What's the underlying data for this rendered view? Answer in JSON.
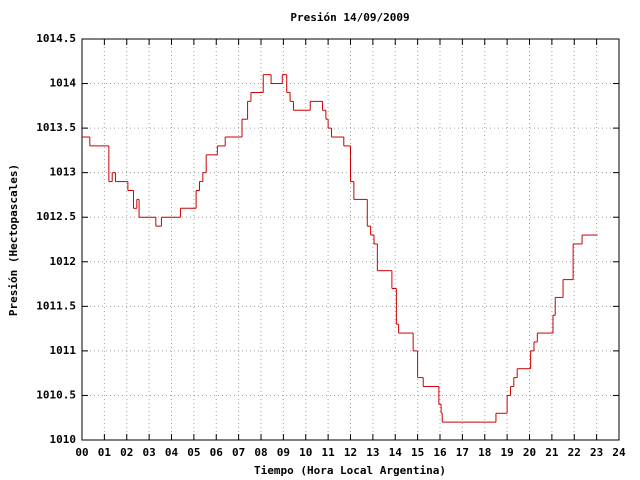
{
  "chart_data": {
    "type": "line",
    "drawstyle": "steps-post",
    "title": "Presión 14/09/2009",
    "x_label": "Tiempo (Hora Local Argentina)",
    "y_label": "Presión (Hectopascales)",
    "xlim": [
      0,
      24
    ],
    "xticks": [
      {
        "value": 0,
        "label": "00"
      },
      {
        "value": 1,
        "label": "01"
      },
      {
        "value": 2,
        "label": "02"
      },
      {
        "value": 3,
        "label": "03"
      },
      {
        "value": 4,
        "label": "04"
      },
      {
        "value": 5,
        "label": "05"
      },
      {
        "value": 6,
        "label": "06"
      },
      {
        "value": 7,
        "label": "07"
      },
      {
        "value": 8,
        "label": "08"
      },
      {
        "value": 9,
        "label": "09"
      },
      {
        "value": 10,
        "label": "10"
      },
      {
        "value": 11,
        "label": "11"
      },
      {
        "value": 12,
        "label": "12"
      },
      {
        "value": 13,
        "label": "13"
      },
      {
        "value": 14,
        "label": "14"
      },
      {
        "value": 15,
        "label": "15"
      },
      {
        "value": 16,
        "label": "16"
      },
      {
        "value": 17,
        "label": "17"
      },
      {
        "value": 18,
        "label": "18"
      },
      {
        "value": 19,
        "label": "19"
      },
      {
        "value": 20,
        "label": "20"
      },
      {
        "value": 21,
        "label": "21"
      },
      {
        "value": 22,
        "label": "22"
      },
      {
        "value": 23,
        "label": "23"
      },
      {
        "value": 24,
        "label": "24"
      }
    ],
    "ylim": [
      1010,
      1014.5
    ],
    "yticks": [
      1010,
      1010.5,
      1011,
      1011.5,
      1012,
      1012.5,
      1013,
      1013.5,
      1014,
      1014.5
    ],
    "grid": true,
    "color": "#cc0000",
    "x": [
      0,
      0.35,
      1.2,
      1.35,
      1.5,
      2.05,
      2.3,
      2.45,
      2.55,
      3.3,
      3.55,
      4.4,
      5.1,
      5.25,
      5.4,
      5.55,
      6.05,
      6.4,
      7.15,
      7.4,
      7.55,
      8.1,
      8.45,
      8.95,
      9.15,
      9.3,
      9.45,
      10.2,
      10.75,
      10.9,
      11.0,
      11.15,
      11.7,
      12.0,
      12.15,
      12.75,
      12.9,
      13.05,
      13.2,
      13.85,
      14.05,
      14.15,
      14.8,
      15.0,
      15.25,
      15.95,
      16.05,
      16.1,
      18.5,
      19.0,
      19.15,
      19.3,
      19.45,
      20.05,
      20.2,
      20.35,
      21.05,
      21.15,
      21.5,
      21.95,
      22.35,
      23.0
    ],
    "values": [
      1013.4,
      1013.3,
      1012.9,
      1013.0,
      1012.9,
      1012.8,
      1012.6,
      1012.7,
      1012.5,
      1012.4,
      1012.5,
      1012.6,
      1012.8,
      1012.9,
      1013.0,
      1013.2,
      1013.3,
      1013.4,
      1013.6,
      1013.8,
      1013.9,
      1014.1,
      1014.0,
      1014.1,
      1013.9,
      1013.8,
      1013.7,
      1013.8,
      1013.7,
      1013.6,
      1013.5,
      1013.4,
      1013.3,
      1012.9,
      1012.7,
      1012.4,
      1012.3,
      1012.2,
      1011.9,
      1011.7,
      1011.3,
      1011.2,
      1011.0,
      1010.7,
      1010.6,
      1010.4,
      1010.3,
      1010.2,
      1010.3,
      1010.5,
      1010.6,
      1010.7,
      1010.8,
      1011.0,
      1011.1,
      1011.2,
      1011.4,
      1011.6,
      1011.8,
      1012.2,
      1012.3,
      1012.3
    ]
  }
}
